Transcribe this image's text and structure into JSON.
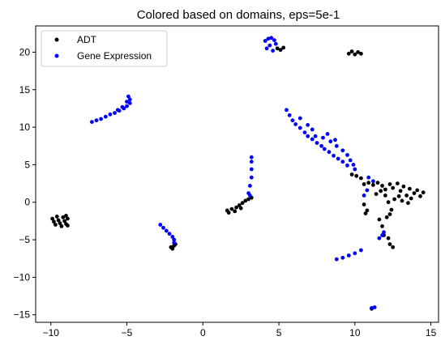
{
  "chart_data": {
    "type": "scatter",
    "title": "Colored based on domains, eps=5e-1",
    "xlabel": "",
    "ylabel": "",
    "xlim": [
      -11,
      15.5
    ],
    "ylim": [
      -16,
      23.5
    ],
    "xticks": [
      -10,
      -5,
      0,
      5,
      10,
      15
    ],
    "yticks": [
      -15,
      -10,
      -5,
      0,
      5,
      10,
      15,
      20
    ],
    "grid": false,
    "legend": {
      "position": "top-left"
    },
    "series": [
      {
        "name": "ADT",
        "color": "#000000",
        "points": [
          [
            -9.9,
            -2.2
          ],
          [
            -9.8,
            -2.6
          ],
          [
            -9.7,
            -3.0
          ],
          [
            -9.6,
            -1.9
          ],
          [
            -9.5,
            -2.4
          ],
          [
            -9.4,
            -2.8
          ],
          [
            -9.3,
            -3.2
          ],
          [
            -9.2,
            -2.0
          ],
          [
            -9.1,
            -2.5
          ],
          [
            -9.0,
            -1.8
          ],
          [
            -9.0,
            -2.9
          ],
          [
            -8.9,
            -2.2
          ],
          [
            -8.9,
            -3.1
          ],
          [
            -2.1,
            -6.0
          ],
          [
            -1.9,
            -5.8
          ],
          [
            -2.0,
            -6.2
          ],
          [
            -1.8,
            -5.6
          ],
          [
            1.6,
            -1.1
          ],
          [
            1.7,
            -1.4
          ],
          [
            1.9,
            -0.9
          ],
          [
            2.1,
            -1.2
          ],
          [
            2.2,
            -0.7
          ],
          [
            2.4,
            -0.4
          ],
          [
            2.6,
            -0.1
          ],
          [
            2.8,
            0.2
          ],
          [
            3.0,
            0.4
          ],
          [
            3.2,
            0.6
          ],
          [
            2.5,
            -0.8
          ],
          [
            4.9,
            20.5
          ],
          [
            5.1,
            20.3
          ],
          [
            5.3,
            20.6
          ],
          [
            9.6,
            19.8
          ],
          [
            9.8,
            20.1
          ],
          [
            10.0,
            19.7
          ],
          [
            10.2,
            20.0
          ],
          [
            10.4,
            19.8
          ],
          [
            9.8,
            3.7
          ],
          [
            10.1,
            3.5
          ],
          [
            10.4,
            3.2
          ],
          [
            10.6,
            -0.3
          ],
          [
            10.8,
            -1.1
          ],
          [
            10.7,
            -1.5
          ],
          [
            11.8,
            -3.2
          ],
          [
            11.6,
            -2.3
          ],
          [
            12.1,
            -2.0
          ],
          [
            12.3,
            -1.6
          ],
          [
            12.4,
            -1.0
          ],
          [
            11.9,
            -4.4
          ],
          [
            12.2,
            -4.8
          ],
          [
            12.3,
            -5.6
          ],
          [
            12.5,
            -6.0
          ],
          [
            10.6,
            2.4
          ],
          [
            10.9,
            2.6
          ],
          [
            11.2,
            2.3
          ],
          [
            11.5,
            2.6
          ],
          [
            11.8,
            2.2
          ],
          [
            12.0,
            1.7
          ],
          [
            12.3,
            2.4
          ],
          [
            12.5,
            1.9
          ],
          [
            12.8,
            2.5
          ],
          [
            13.0,
            1.5
          ],
          [
            13.2,
            2.1
          ],
          [
            13.4,
            0.9
          ],
          [
            13.6,
            1.8
          ],
          [
            13.9,
            1.2
          ],
          [
            14.1,
            1.6
          ],
          [
            14.3,
            0.8
          ],
          [
            12.0,
            0.9
          ],
          [
            12.6,
            0.4
          ],
          [
            13.1,
            0.2
          ],
          [
            11.4,
            1.1
          ],
          [
            12.2,
            0.0
          ],
          [
            13.7,
            0.5
          ],
          [
            14.5,
            1.3
          ],
          [
            11.7,
            1.5
          ],
          [
            12.9,
            0.8
          ],
          [
            13.5,
            -0.1
          ],
          [
            11.1,
            -14.2
          ]
        ]
      },
      {
        "name": "Gene Expression",
        "color": "#0000ff",
        "points": [
          [
            -7.3,
            10.7
          ],
          [
            -7.0,
            10.9
          ],
          [
            -6.7,
            11.1
          ],
          [
            -6.4,
            11.4
          ],
          [
            -6.1,
            11.7
          ],
          [
            -5.8,
            11.9
          ],
          [
            -5.5,
            12.2
          ],
          [
            -5.2,
            12.5
          ],
          [
            -5.0,
            12.8
          ],
          [
            -4.8,
            13.2
          ],
          [
            -4.8,
            13.7
          ],
          [
            -4.9,
            14.1
          ],
          [
            -5.0,
            13.4
          ],
          [
            -5.3,
            12.7
          ],
          [
            -5.6,
            12.3
          ],
          [
            -2.8,
            -3.0
          ],
          [
            -2.6,
            -3.4
          ],
          [
            -2.4,
            -3.8
          ],
          [
            -2.2,
            -4.2
          ],
          [
            -2.0,
            -4.6
          ],
          [
            -1.9,
            -5.0
          ],
          [
            -1.9,
            -5.4
          ],
          [
            3.0,
            1.2
          ],
          [
            3.1,
            2.2
          ],
          [
            3.2,
            3.3
          ],
          [
            3.2,
            4.4
          ],
          [
            3.2,
            5.4
          ],
          [
            3.2,
            6.0
          ],
          [
            3.1,
            0.9
          ],
          [
            4.1,
            21.5
          ],
          [
            4.3,
            21.8
          ],
          [
            4.5,
            21.9
          ],
          [
            4.7,
            21.6
          ],
          [
            4.4,
            20.9
          ],
          [
            4.6,
            20.2
          ],
          [
            4.8,
            21.1
          ],
          [
            4.2,
            20.5
          ],
          [
            5.5,
            12.3
          ],
          [
            5.7,
            11.6
          ],
          [
            5.9,
            10.9
          ],
          [
            6.1,
            10.4
          ],
          [
            6.4,
            9.9
          ],
          [
            6.7,
            9.3
          ],
          [
            6.9,
            8.8
          ],
          [
            7.2,
            8.4
          ],
          [
            7.5,
            7.9
          ],
          [
            7.8,
            7.5
          ],
          [
            8.0,
            7.1
          ],
          [
            8.3,
            6.7
          ],
          [
            8.6,
            6.2
          ],
          [
            8.9,
            5.8
          ],
          [
            9.2,
            5.4
          ],
          [
            9.5,
            4.9
          ],
          [
            7.4,
            8.8
          ],
          [
            7.9,
            8.6
          ],
          [
            8.4,
            8.1
          ],
          [
            8.8,
            7.5
          ],
          [
            9.2,
            6.9
          ],
          [
            9.5,
            6.3
          ],
          [
            9.7,
            5.6
          ],
          [
            9.9,
            5.0
          ],
          [
            10.0,
            4.4
          ],
          [
            6.4,
            11.2
          ],
          [
            6.9,
            10.3
          ],
          [
            7.2,
            9.7
          ],
          [
            8.2,
            9.1
          ],
          [
            8.7,
            8.3
          ],
          [
            10.9,
            3.3
          ],
          [
            11.2,
            2.8
          ],
          [
            10.8,
            1.6
          ],
          [
            10.6,
            0.9
          ],
          [
            11.8,
            -4.4
          ],
          [
            11.6,
            -4.8
          ],
          [
            11.9,
            -4.0
          ],
          [
            8.8,
            -7.6
          ],
          [
            9.2,
            -7.4
          ],
          [
            9.6,
            -7.1
          ],
          [
            10.0,
            -6.8
          ],
          [
            10.4,
            -6.4
          ],
          [
            11.1,
            -14.1
          ],
          [
            11.3,
            -14.0
          ]
        ]
      }
    ]
  }
}
